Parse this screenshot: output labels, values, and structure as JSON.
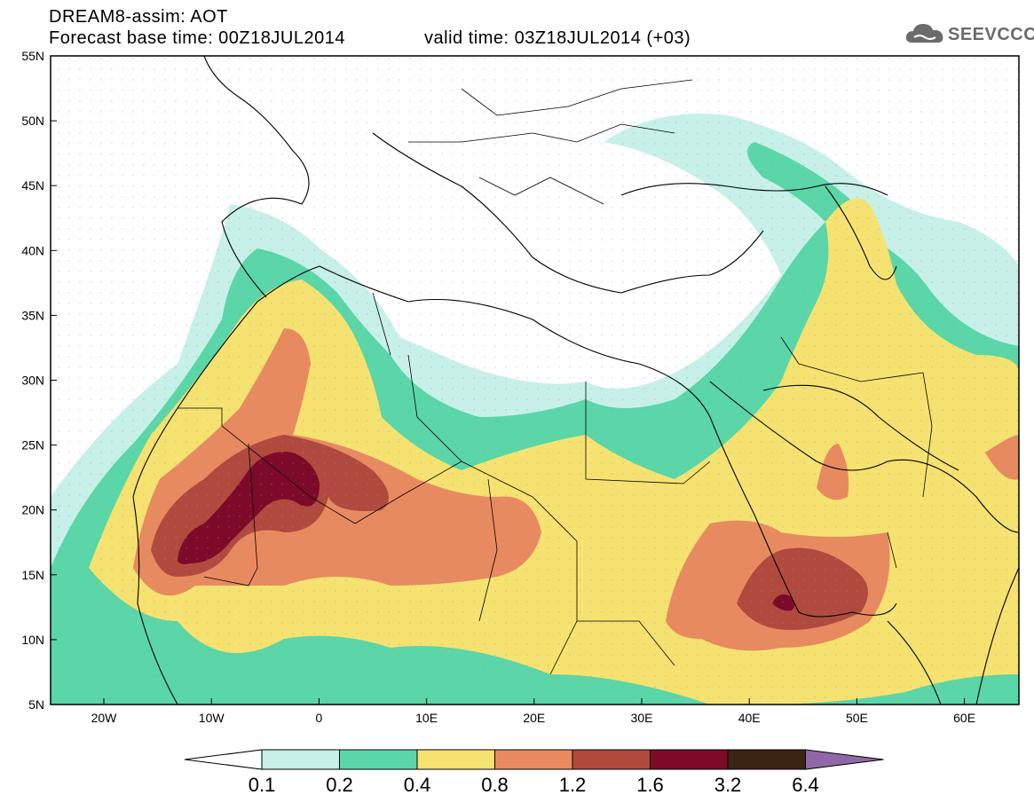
{
  "title": {
    "line1": "DREAM8-assim: AOT",
    "line2": "Forecast base time: 00Z18JUL2014",
    "valid": "valid time: 03Z18JUL2014 (+03)"
  },
  "logo": {
    "text": "SEEVCCC"
  },
  "axes": {
    "lat_ticks": [
      "55N",
      "50N",
      "45N",
      "40N",
      "35N",
      "30N",
      "25N",
      "20N",
      "15N",
      "10N",
      "5N"
    ],
    "lon_ticks": [
      "20W",
      "10W",
      "0",
      "10E",
      "20E",
      "30E",
      "40E",
      "50E",
      "60E"
    ]
  },
  "colorbar": {
    "labels": [
      "0.1",
      "0.2",
      "0.4",
      "0.8",
      "1.2",
      "1.6",
      "3.2",
      "6.4"
    ],
    "colors": [
      "#ffffff",
      "#c6f0e8",
      "#5ad6a8",
      "#f5e270",
      "#e88a60",
      "#b04a3e",
      "#7e0a2a",
      "#3a2414",
      "#9068a8"
    ]
  }
}
